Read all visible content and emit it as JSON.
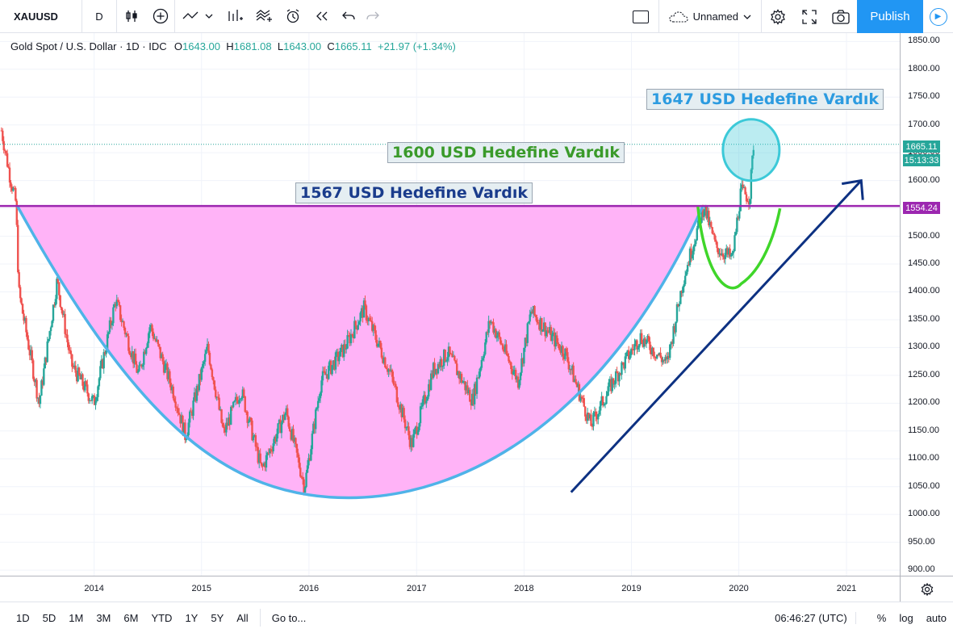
{
  "toolbar": {
    "symbol": "XAUUSD",
    "interval": "D",
    "layout_name": "Unnamed",
    "publish_label": "Publish"
  },
  "legend": {
    "title": "Gold Spot / U.S. Dollar · 1D · IDC",
    "o_label": "O",
    "o_value": "1643.00",
    "h_label": "H",
    "h_value": "1681.08",
    "l_label": "L",
    "l_value": "1643.00",
    "c_label": "C",
    "c_value": "1665.11",
    "change": "+21.97 (+1.34%)"
  },
  "annotations": {
    "note_1647": "1647 USD Hedefine Vardık",
    "note_1600": "1600 USD Hedefine Vardık",
    "note_1567": "1567 USD Hedefine Vardık"
  },
  "price_badges": {
    "last_price": "1665.11",
    "countdown": "15:13:33",
    "resistance": "1554.24"
  },
  "colors": {
    "up": "#26a69a",
    "down": "#ef5350",
    "cup_fill": "#ffb3f7",
    "cup_line": "#4fb3e8",
    "resistance_line": "#9c27b0",
    "handle_line": "#3fd62a",
    "trend_arrow": "#0d3182",
    "target_circle": "#3cc9d8",
    "accent": "#2196f3"
  },
  "bottombar": {
    "ranges": [
      "1D",
      "5D",
      "1M",
      "3M",
      "6M",
      "YTD",
      "1Y",
      "5Y",
      "All"
    ],
    "goto_label": "Go to...",
    "clock": "06:46:27 (UTC)",
    "percent_label": "%",
    "log_label": "log",
    "auto_label": "auto"
  },
  "chart_data": {
    "type": "candlestick",
    "title": "Gold Spot / U.S. Dollar · 1D · IDC",
    "x_ticks": [
      "2014",
      "2015",
      "2016",
      "2017",
      "2018",
      "2019",
      "2020",
      "2021"
    ],
    "y_ticks": [
      1850,
      1800,
      1750,
      1700,
      1650,
      1600,
      1550,
      1500,
      1450,
      1400,
      1350,
      1300,
      1250,
      1200,
      1150,
      1100,
      1050,
      1000,
      950,
      900
    ],
    "y_tick_labels": [
      "1850.00",
      "1800.00",
      "1750.00",
      "1700.00",
      "1650.00",
      "1600.00",
      "1550.00",
      "1500.00",
      "1450.00",
      "1400.00",
      "1350.00",
      "1300.00",
      "1250.00",
      "1200.00",
      "1150.00",
      "1100.00",
      "1050.00",
      "1000.00",
      "950.00",
      "900.00"
    ],
    "ylim": [
      890,
      1865
    ],
    "xlim": [
      "2013-02-15",
      "2021-07-01"
    ],
    "series": [
      {
        "type": "close",
        "points": [
          {
            "x": "2013-02-20",
            "y": 1690
          },
          {
            "x": "2013-03-20",
            "y": 1610
          },
          {
            "x": "2013-04-10",
            "y": 1560
          },
          {
            "x": "2013-04-20",
            "y": 1400
          },
          {
            "x": "2013-06-28",
            "y": 1200
          },
          {
            "x": "2013-08-28",
            "y": 1420
          },
          {
            "x": "2013-10-15",
            "y": 1270
          },
          {
            "x": "2013-12-31",
            "y": 1200
          },
          {
            "x": "2014-03-15",
            "y": 1385
          },
          {
            "x": "2014-06-01",
            "y": 1250
          },
          {
            "x": "2014-07-10",
            "y": 1340
          },
          {
            "x": "2014-10-01",
            "y": 1215
          },
          {
            "x": "2014-11-07",
            "y": 1140
          },
          {
            "x": "2015-01-22",
            "y": 1300
          },
          {
            "x": "2015-03-17",
            "y": 1145
          },
          {
            "x": "2015-05-15",
            "y": 1225
          },
          {
            "x": "2015-07-24",
            "y": 1080
          },
          {
            "x": "2015-10-15",
            "y": 1185
          },
          {
            "x": "2015-12-17",
            "y": 1050
          },
          {
            "x": "2016-02-11",
            "y": 1240
          },
          {
            "x": "2016-05-02",
            "y": 1300
          },
          {
            "x": "2016-07-06",
            "y": 1370
          },
          {
            "x": "2016-10-06",
            "y": 1250
          },
          {
            "x": "2016-12-15",
            "y": 1125
          },
          {
            "x": "2017-02-27",
            "y": 1260
          },
          {
            "x": "2017-04-17",
            "y": 1290
          },
          {
            "x": "2017-07-10",
            "y": 1205
          },
          {
            "x": "2017-09-08",
            "y": 1350
          },
          {
            "x": "2017-12-12",
            "y": 1240
          },
          {
            "x": "2018-01-25",
            "y": 1365
          },
          {
            "x": "2018-05-21",
            "y": 1290
          },
          {
            "x": "2018-08-16",
            "y": 1160
          },
          {
            "x": "2018-10-26",
            "y": 1235
          },
          {
            "x": "2019-01-31",
            "y": 1320
          },
          {
            "x": "2019-05-02",
            "y": 1270
          },
          {
            "x": "2019-06-25",
            "y": 1420
          },
          {
            "x": "2019-09-04",
            "y": 1555
          },
          {
            "x": "2019-10-15",
            "y": 1480
          },
          {
            "x": "2019-12-10",
            "y": 1460
          },
          {
            "x": "2020-01-08",
            "y": 1580
          },
          {
            "x": "2020-02-07",
            "y": 1570
          },
          {
            "x": "2020-02-20",
            "y": 1665.11
          }
        ]
      }
    ],
    "horizontal_line": {
      "y": 1554.24
    },
    "last_price": 1665.11
  }
}
